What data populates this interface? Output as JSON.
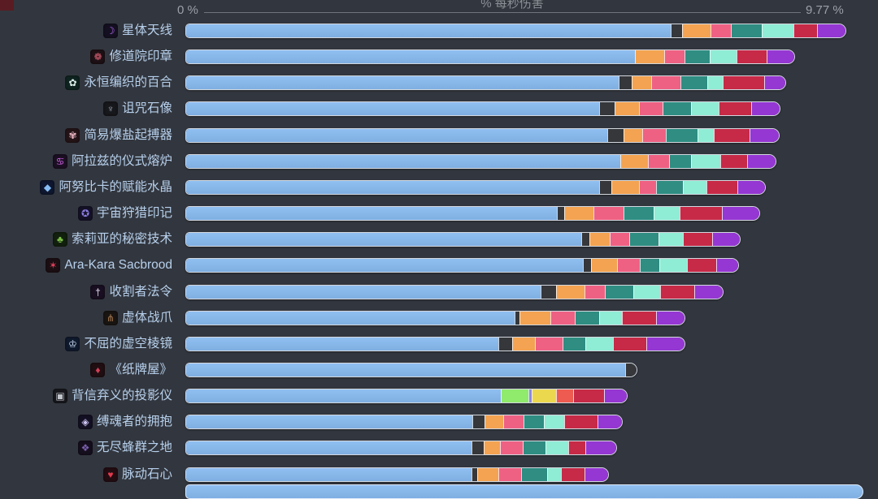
{
  "axis": {
    "title": "% 每秒伤害",
    "min_label": "0 %",
    "max_label": "9.77 %"
  },
  "colors": {
    "blue": "#85b6ea",
    "dark": "#35373b",
    "orange": "#f3a351",
    "pink": "#ee6183",
    "teal": "#2f8d82",
    "mint": "#8fecd5",
    "red": "#c62a47",
    "purple": "#9537d2",
    "lime": "#90ea6c",
    "yellow": "#ecd84f",
    "salmon": "#ee5b50",
    "lavender": "#8f86e8"
  },
  "chart_data": {
    "type": "bar",
    "orientation": "horizontal",
    "title": "% 每秒伤害",
    "unit": "%",
    "xlim": [
      0,
      9.77
    ],
    "legend": "none",
    "grid": false,
    "rows": [
      {
        "label": "星体天线",
        "icon": {
          "name": "astral-antenna-icon",
          "glyph": "☽",
          "bg": "#141022",
          "fg": "#b666f2"
        },
        "total": 9.77,
        "segments": [
          {
            "c": "blue",
            "v": 7.23
          },
          {
            "c": "dark",
            "v": 0.16
          },
          {
            "c": "orange",
            "v": 0.41
          },
          {
            "c": "pink",
            "v": 0.3
          },
          {
            "c": "teal",
            "v": 0.44
          },
          {
            "c": "mint",
            "v": 0.46
          },
          {
            "c": "red",
            "v": 0.35
          },
          {
            "c": "purple",
            "v": 0.41
          }
        ]
      },
      {
        "label": "修道院印章",
        "icon": {
          "name": "monastery-seal-icon",
          "glyph": "❁",
          "bg": "#1d1115",
          "fg": "#d65f72"
        },
        "total": 9.0,
        "segments": [
          {
            "c": "blue",
            "v": 6.7
          },
          {
            "c": "orange",
            "v": 0.42
          },
          {
            "c": "pink",
            "v": 0.3
          },
          {
            "c": "teal",
            "v": 0.36
          },
          {
            "c": "mint",
            "v": 0.39
          },
          {
            "c": "red",
            "v": 0.44
          },
          {
            "c": "purple",
            "v": 0.39
          }
        ]
      },
      {
        "label": "永恒编织的百合",
        "icon": {
          "name": "eternal-woven-lily-icon",
          "glyph": "✿",
          "bg": "#0f2420",
          "fg": "#dff2ea"
        },
        "total": 8.86,
        "segments": [
          {
            "c": "blue",
            "v": 6.46
          },
          {
            "c": "dark",
            "v": 0.18
          },
          {
            "c": "orange",
            "v": 0.28
          },
          {
            "c": "pink",
            "v": 0.42
          },
          {
            "c": "teal",
            "v": 0.39
          },
          {
            "c": "mint",
            "v": 0.22
          },
          {
            "c": "red",
            "v": 0.61
          },
          {
            "c": "purple",
            "v": 0.3
          }
        ]
      },
      {
        "label": "诅咒石像",
        "icon": {
          "name": "cursed-statue-icon",
          "glyph": "♆",
          "bg": "#17181c",
          "fg": "#9aa1ac"
        },
        "total": 8.78,
        "segments": [
          {
            "c": "blue",
            "v": 6.17
          },
          {
            "c": "dark",
            "v": 0.21
          },
          {
            "c": "orange",
            "v": 0.35
          },
          {
            "c": "pink",
            "v": 0.34
          },
          {
            "c": "teal",
            "v": 0.42
          },
          {
            "c": "mint",
            "v": 0.4
          },
          {
            "c": "red",
            "v": 0.47
          },
          {
            "c": "purple",
            "v": 0.42
          }
        ]
      },
      {
        "label": "简易爆盐起搏器",
        "icon": {
          "name": "salt-pacemaker-icon",
          "glyph": "✾",
          "bg": "#241418",
          "fg": "#eab6c2"
        },
        "total": 8.76,
        "segments": [
          {
            "c": "blue",
            "v": 6.29
          },
          {
            "c": "dark",
            "v": 0.23
          },
          {
            "c": "orange",
            "v": 0.27
          },
          {
            "c": "pink",
            "v": 0.34
          },
          {
            "c": "teal",
            "v": 0.45
          },
          {
            "c": "mint",
            "v": 0.24
          },
          {
            "c": "red",
            "v": 0.52
          },
          {
            "c": "purple",
            "v": 0.42
          }
        ]
      },
      {
        "label": "阿拉兹的仪式熔炉",
        "icon": {
          "name": "alaz-ritual-furnace-icon",
          "glyph": "♋",
          "bg": "#1c1024",
          "fg": "#d563e8"
        },
        "total": 8.73,
        "segments": [
          {
            "c": "blue",
            "v": 6.48
          },
          {
            "c": "orange",
            "v": 0.4
          },
          {
            "c": "pink",
            "v": 0.3
          },
          {
            "c": "teal",
            "v": 0.32
          },
          {
            "c": "mint",
            "v": 0.42
          },
          {
            "c": "red",
            "v": 0.39
          },
          {
            "c": "purple",
            "v": 0.42
          }
        ]
      },
      {
        "label": "阿努比卡的赋能水晶",
        "icon": {
          "name": "anubika-crystal-icon",
          "glyph": "◆",
          "bg": "#0f1830",
          "fg": "#86bdf4"
        },
        "total": 8.56,
        "segments": [
          {
            "c": "blue",
            "v": 6.17
          },
          {
            "c": "dark",
            "v": 0.16
          },
          {
            "c": "orange",
            "v": 0.4
          },
          {
            "c": "pink",
            "v": 0.25
          },
          {
            "c": "teal",
            "v": 0.39
          },
          {
            "c": "mint",
            "v": 0.34
          },
          {
            "c": "red",
            "v": 0.45
          },
          {
            "c": "purple",
            "v": 0.4
          }
        ]
      },
      {
        "label": "宇宙狩猎印记",
        "icon": {
          "name": "cosmic-hunt-mark-icon",
          "glyph": "✪",
          "bg": "#151228",
          "fg": "#8d7fe2"
        },
        "total": 8.47,
        "segments": [
          {
            "c": "blue",
            "v": 5.53
          },
          {
            "c": "dark",
            "v": 0.1
          },
          {
            "c": "orange",
            "v": 0.42
          },
          {
            "c": "pink",
            "v": 0.44
          },
          {
            "c": "teal",
            "v": 0.44
          },
          {
            "c": "mint",
            "v": 0.38
          },
          {
            "c": "red",
            "v": 0.61
          },
          {
            "c": "purple",
            "v": 0.55
          }
        ]
      },
      {
        "label": "索莉亚的秘密技术",
        "icon": {
          "name": "soliya-secret-tech-icon",
          "glyph": "♣",
          "bg": "#12200e",
          "fg": "#7cbf46"
        },
        "total": 8.18,
        "segments": [
          {
            "c": "blue",
            "v": 5.9
          },
          {
            "c": "dark",
            "v": 0.11
          },
          {
            "c": "orange",
            "v": 0.29
          },
          {
            "c": "pink",
            "v": 0.28
          },
          {
            "c": "teal",
            "v": 0.42
          },
          {
            "c": "mint",
            "v": 0.36
          },
          {
            "c": "red",
            "v": 0.42
          },
          {
            "c": "purple",
            "v": 0.4
          }
        ]
      },
      {
        "label": "Ara-Kara Sacbrood",
        "icon": {
          "name": "ara-kara-sacbrood-icon",
          "glyph": "✶",
          "bg": "#1c0f14",
          "fg": "#e0405a"
        },
        "total": 8.16,
        "segments": [
          {
            "c": "blue",
            "v": 5.92
          },
          {
            "c": "dark",
            "v": 0.11
          },
          {
            "c": "orange",
            "v": 0.38
          },
          {
            "c": "pink",
            "v": 0.32
          },
          {
            "c": "teal",
            "v": 0.29
          },
          {
            "c": "mint",
            "v": 0.4
          },
          {
            "c": "red",
            "v": 0.42
          },
          {
            "c": "purple",
            "v": 0.32
          }
        ]
      },
      {
        "label": "收割者法令",
        "icon": {
          "name": "reaper-decree-icon",
          "glyph": "†",
          "bg": "#190f22",
          "fg": "#e8e2f2"
        },
        "total": 7.92,
        "segments": [
          {
            "c": "blue",
            "v": 5.29
          },
          {
            "c": "dark",
            "v": 0.22
          },
          {
            "c": "orange",
            "v": 0.41
          },
          {
            "c": "pink",
            "v": 0.29
          },
          {
            "c": "teal",
            "v": 0.42
          },
          {
            "c": "mint",
            "v": 0.38
          },
          {
            "c": "red",
            "v": 0.5
          },
          {
            "c": "purple",
            "v": 0.41
          }
        ]
      },
      {
        "label": "虚体战爪",
        "icon": {
          "name": "void-battle-claw-icon",
          "glyph": "⋔",
          "bg": "#1a1512",
          "fg": "#a87a52"
        },
        "total": 7.36,
        "segments": [
          {
            "c": "blue",
            "v": 4.9
          },
          {
            "c": "dark",
            "v": 0.06
          },
          {
            "c": "orange",
            "v": 0.45
          },
          {
            "c": "pink",
            "v": 0.35
          },
          {
            "c": "teal",
            "v": 0.36
          },
          {
            "c": "mint",
            "v": 0.33
          },
          {
            "c": "red",
            "v": 0.49
          },
          {
            "c": "purple",
            "v": 0.42
          }
        ]
      },
      {
        "label": "不屈的虚空棱镜",
        "icon": {
          "name": "unyielding-void-prism-icon",
          "glyph": "♔",
          "bg": "#101a2e",
          "fg": "#cfe2f8"
        },
        "total": 7.35,
        "segments": [
          {
            "c": "blue",
            "v": 4.66
          },
          {
            "c": "dark",
            "v": 0.19
          },
          {
            "c": "orange",
            "v": 0.33
          },
          {
            "c": "pink",
            "v": 0.4
          },
          {
            "c": "teal",
            "v": 0.33
          },
          {
            "c": "mint",
            "v": 0.4
          },
          {
            "c": "red",
            "v": 0.49
          },
          {
            "c": "purple",
            "v": 0.55
          }
        ]
      },
      {
        "label": "《纸牌屋》",
        "icon": {
          "name": "house-of-cards-icon",
          "glyph": "♦",
          "bg": "#200e12",
          "fg": "#d04058"
        },
        "total": 6.71,
        "segments": [
          {
            "c": "blue",
            "v": 6.55
          },
          {
            "c": "dark",
            "v": 0.16
          }
        ]
      },
      {
        "label": "背信弃义的投影仪",
        "icon": {
          "name": "treacherous-projector-icon",
          "glyph": "▣",
          "bg": "#17181d",
          "fg": "#c2c6cd"
        },
        "total": 6.5,
        "segments": [
          {
            "c": "blue",
            "v": 4.7
          },
          {
            "c": "lime",
            "v": 0.4
          },
          {
            "c": "lavender",
            "v": 0.03
          },
          {
            "c": "yellow",
            "v": 0.36
          },
          {
            "c": "salmon",
            "v": 0.24
          },
          {
            "c": "red",
            "v": 0.45
          },
          {
            "c": "purple",
            "v": 0.32
          }
        ]
      },
      {
        "label": "缚魂者的拥抱",
        "icon": {
          "name": "soulbinder-embrace-icon",
          "glyph": "◈",
          "bg": "#141024",
          "fg": "#cfc4f4"
        },
        "total": 6.42,
        "segments": [
          {
            "c": "blue",
            "v": 4.27
          },
          {
            "c": "dark",
            "v": 0.17
          },
          {
            "c": "orange",
            "v": 0.27
          },
          {
            "c": "pink",
            "v": 0.29
          },
          {
            "c": "teal",
            "v": 0.29
          },
          {
            "c": "mint",
            "v": 0.29
          },
          {
            "c": "red",
            "v": 0.49
          },
          {
            "c": "purple",
            "v": 0.35
          }
        ]
      },
      {
        "label": "无尽蜂群之地",
        "icon": {
          "name": "endless-swarm-land-icon",
          "glyph": "❖",
          "bg": "#160f1e",
          "fg": "#7a5fae"
        },
        "total": 6.34,
        "segments": [
          {
            "c": "blue",
            "v": 4.26
          },
          {
            "c": "dark",
            "v": 0.17
          },
          {
            "c": "orange",
            "v": 0.23
          },
          {
            "c": "pink",
            "v": 0.33
          },
          {
            "c": "teal",
            "v": 0.33
          },
          {
            "c": "mint",
            "v": 0.32
          },
          {
            "c": "red",
            "v": 0.25
          },
          {
            "c": "purple",
            "v": 0.45
          }
        ]
      },
      {
        "label": "脉动石心",
        "icon": {
          "name": "pulsing-stone-heart-icon",
          "glyph": "♥",
          "bg": "#230d12",
          "fg": "#e23a50"
        },
        "total": 6.21,
        "segments": [
          {
            "c": "blue",
            "v": 4.26
          },
          {
            "c": "dark",
            "v": 0.07
          },
          {
            "c": "orange",
            "v": 0.3
          },
          {
            "c": "pink",
            "v": 0.33
          },
          {
            "c": "teal",
            "v": 0.38
          },
          {
            "c": "mint",
            "v": 0.19
          },
          {
            "c": "red",
            "v": 0.35
          },
          {
            "c": "purple",
            "v": 0.33
          }
        ]
      }
    ]
  }
}
